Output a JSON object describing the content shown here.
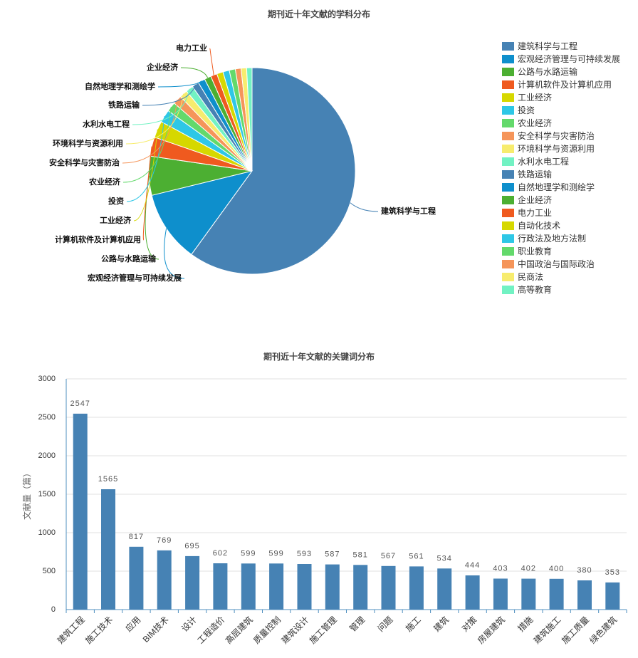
{
  "chart_data": [
    {
      "type": "pie",
      "title": "期刊近十年文献的学科分布",
      "categories": [
        "建筑科学与工程",
        "宏观经济管理与可持续发展",
        "公路与水路运输",
        "计算机软件及计算机应用",
        "工业经济",
        "投资",
        "农业经济",
        "安全科学与灾害防治",
        "环境科学与资源利用",
        "水利水电工程",
        "铁路运输",
        "自然地理学和测绘学",
        "企业经济",
        "电力工业",
        "自动化技术",
        "行政法及地方法制",
        "职业教育",
        "中国政治与国际政治",
        "民商法",
        "高等教育"
      ],
      "values": [
        60.0,
        11.2,
        6.1,
        3.0,
        2.6,
        2.0,
        1.5,
        1.4,
        1.25,
        1.15,
        1.1,
        1.1,
        1.05,
        1.0,
        1.0,
        1.0,
        0.95,
        0.9,
        0.85,
        0.85
      ],
      "colors": [
        "#4682b4",
        "#0e8fcc",
        "#4caf32",
        "#ef5a1f",
        "#d6d800",
        "#2ec7e6",
        "#63d96b",
        "#f5955a",
        "#f7ec6e",
        "#72f2c3",
        "#4682b4",
        "#0e8fcc",
        "#4caf32",
        "#ef5a1f",
        "#d6d800",
        "#2ec7e6",
        "#63d96b",
        "#f5955a",
        "#f7ec6e",
        "#72f2c3"
      ],
      "legend_position": "right"
    },
    {
      "type": "bar",
      "title": "期刊近十年文献的关键词分布",
      "categories": [
        "建筑工程",
        "施工技术",
        "应用",
        "BIM技术",
        "设计",
        "工程造价",
        "高层建筑",
        "质量控制",
        "建筑设计",
        "施工管理",
        "管理",
        "问题",
        "施工",
        "建筑",
        "对策",
        "房屋建筑",
        "措施",
        "建筑施工",
        "施工质量",
        "绿色建筑"
      ],
      "values": [
        2547,
        1565,
        817,
        769,
        695,
        602,
        599,
        599,
        593,
        587,
        581,
        567,
        561,
        534,
        444,
        403,
        402,
        400,
        380,
        353
      ],
      "xlabel": "",
      "ylabel": "文献量（篇）",
      "ylim": [
        0,
        3000
      ],
      "yticks": [
        0,
        500,
        1000,
        1500,
        2000,
        2500,
        3000
      ],
      "color": "#4682b4",
      "axis_color": "#4f8fbf",
      "grid": true
    }
  ]
}
